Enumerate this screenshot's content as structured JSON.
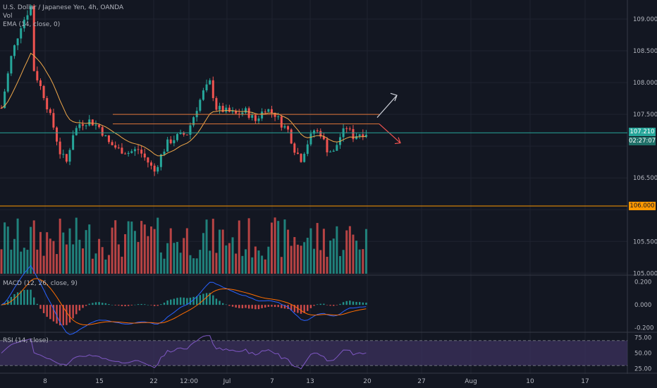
{
  "chart_data": [
    {
      "type": "candlestick",
      "title": "U.S. Dollar / Japanese Yen, 4h, OANDA",
      "overlays": [
        "Vol",
        "EMA (14, close, 0)"
      ],
      "yticks": [
        109.0,
        108.5,
        108.0,
        107.5,
        107.0,
        106.5,
        106.0,
        105.5,
        105.0
      ],
      "ylim": [
        104.97,
        109.3
      ],
      "xticks": [
        "8",
        "15",
        "22",
        "12:00",
        "Jul",
        "7",
        "13",
        "20",
        "27",
        "Aug",
        "10",
        "17"
      ],
      "last_price": "107.210",
      "countdown": "02:27:07",
      "alert_level": "106.000",
      "approx_close_path": [
        [
          0,
          107.6
        ],
        [
          3,
          108.4
        ],
        [
          6,
          108.9
        ],
        [
          9,
          109.2
        ],
        [
          10,
          108.2
        ],
        [
          13,
          107.8
        ],
        [
          16,
          107.3
        ],
        [
          18,
          106.9
        ],
        [
          20,
          106.75
        ],
        [
          22,
          107.2
        ],
        [
          24,
          107.35
        ],
        [
          27,
          107.4
        ],
        [
          30,
          107.3
        ],
        [
          33,
          107.05
        ],
        [
          36,
          106.95
        ],
        [
          39,
          106.9
        ],
        [
          42,
          106.95
        ],
        [
          45,
          106.75
        ],
        [
          47,
          106.6
        ],
        [
          49,
          106.85
        ],
        [
          51,
          107.05
        ],
        [
          54,
          107.15
        ],
        [
          57,
          107.2
        ],
        [
          60,
          107.6
        ],
        [
          62,
          107.85
        ],
        [
          64,
          108.0
        ],
        [
          66,
          107.6
        ],
        [
          69,
          107.55
        ],
        [
          72,
          107.5
        ],
        [
          75,
          107.55
        ],
        [
          78,
          107.4
        ],
        [
          81,
          107.6
        ],
        [
          84,
          107.5
        ],
        [
          86,
          107.35
        ],
        [
          88,
          107.25
        ],
        [
          90,
          106.95
        ],
        [
          92,
          106.8
        ],
        [
          94,
          107.05
        ],
        [
          96,
          107.25
        ],
        [
          98,
          107.2
        ],
        [
          100,
          106.95
        ],
        [
          102,
          106.9
        ],
        [
          104,
          107.15
        ],
        [
          106,
          107.3
        ],
        [
          108,
          107.15
        ],
        [
          110,
          107.2
        ],
        [
          112,
          107.21
        ]
      ],
      "annotations": [
        "upper range line",
        "lower range line",
        "up projection arrow",
        "down projection arrow"
      ]
    },
    {
      "type": "bar",
      "title": "Vol",
      "note": "volume histogram, red/green by candle direction"
    },
    {
      "type": "line",
      "title": "MACD (12, 26, close, 9)",
      "yticks": [
        0.2,
        0.0,
        -0.2
      ],
      "ylim": [
        -0.22,
        0.24
      ]
    },
    {
      "type": "line",
      "title": "RSI (14, close)",
      "yticks": [
        75.0,
        50.0,
        25.0
      ],
      "ylim": [
        20,
        80
      ],
      "band": [
        30,
        70
      ]
    }
  ],
  "axis_price_labels": [
    "109.000",
    "108.500",
    "108.000",
    "107.500",
    "107.210",
    "106.500",
    "105.500",
    "105.000"
  ],
  "macd_labels": [
    "0.200",
    "0.000",
    "-0.200"
  ],
  "rsi_labels": [
    "75.00",
    "50.00",
    "25.00"
  ],
  "colors": {
    "background": "#131722",
    "up": "#26a69a",
    "down": "#ef5350",
    "ema": "#f0a84a",
    "range_line": "#e0763a",
    "price_line": "#26a69a",
    "alert": "#ff9800",
    "macd": "#2962ff",
    "signal": "#ff6d00",
    "rsi": "#7e57c2",
    "rsi_band": "#3a2f5a"
  }
}
